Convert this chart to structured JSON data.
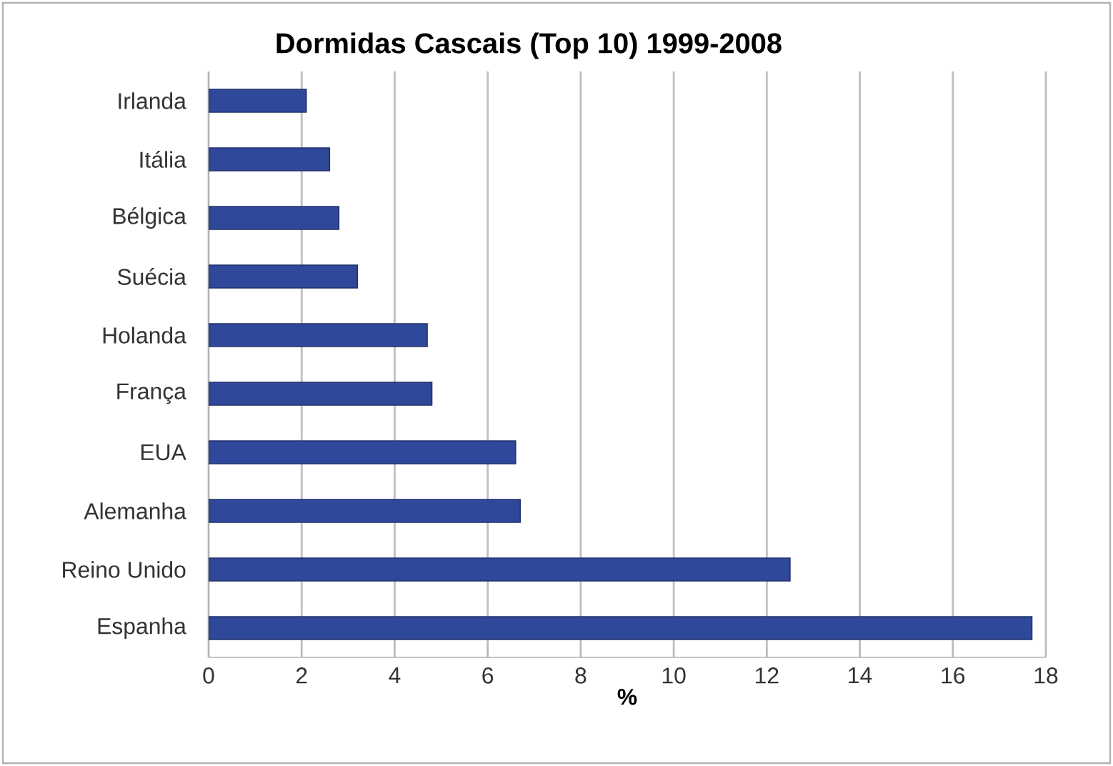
{
  "chart_data": {
    "type": "bar",
    "orientation": "horizontal",
    "title": "Dormidas Cascais (Top 10) 1999-2008",
    "xlabel": "%",
    "categories": [
      "Irlanda",
      "Itália",
      "Bélgica",
      "Suécia",
      "Holanda",
      "França",
      "EUA",
      "Alemanha",
      "Reino Unido",
      "Espanha"
    ],
    "values": [
      2.1,
      2.6,
      2.8,
      3.2,
      4.7,
      4.8,
      6.6,
      6.7,
      12.5,
      17.7
    ],
    "color": "#30489a",
    "xlim": [
      0,
      18
    ],
    "xticks": [
      0,
      2,
      4,
      6,
      8,
      10,
      12,
      14,
      16,
      18
    ],
    "grid": "x"
  }
}
